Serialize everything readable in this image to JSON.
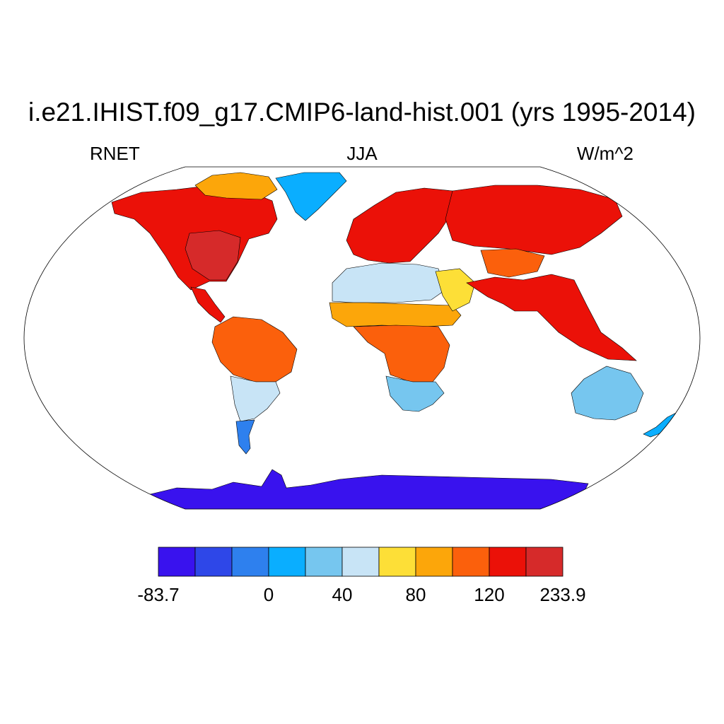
{
  "title": "i.e21.IHIST.f09_g17.CMIP6-land-hist.001 (yrs 1995-2014)",
  "left_label": "RNET",
  "center_label": "JJA",
  "right_label": "W/m^2",
  "colorbar": {
    "colors": [
      "#3912ee",
      "#2e47e8",
      "#2e80ee",
      "#0aaeff",
      "#76c6ef",
      "#c8e4f6",
      "#fddf37",
      "#fca60a",
      "#fb600c",
      "#eb1108",
      "#d62a2a"
    ],
    "labels": [
      "-83.7",
      "0",
      "40",
      "80",
      "120",
      "233.9"
    ]
  },
  "map_data": {
    "projection": "robinson",
    "field": "RNET",
    "season": "JJA",
    "units": "W/m^2",
    "regions": [
      {
        "name": "North America",
        "color": "#eb1108"
      },
      {
        "name": "Eastern United States",
        "color": "#d62a2a"
      },
      {
        "name": "Arctic Canada",
        "color": "#fca60a"
      },
      {
        "name": "Greenland",
        "color": "#0aaeff"
      },
      {
        "name": "Central America",
        "color": "#eb1108"
      },
      {
        "name": "Amazon",
        "color": "#fb600c"
      },
      {
        "name": "Southern South America",
        "color": "#c8e4f6"
      },
      {
        "name": "Patagonia",
        "color": "#2e80ee"
      },
      {
        "name": "Europe",
        "color": "#eb1108"
      },
      {
        "name": "Sahara",
        "color": "#c8e4f6"
      },
      {
        "name": "Sahel",
        "color": "#fca60a"
      },
      {
        "name": "Central Africa",
        "color": "#fb600c"
      },
      {
        "name": "Southern Africa",
        "color": "#76c6ef"
      },
      {
        "name": "Arabia",
        "color": "#fddf37"
      },
      {
        "name": "Siberia",
        "color": "#eb1108"
      },
      {
        "name": "Tibet",
        "color": "#fb600c"
      },
      {
        "name": "India and Southeast Asia",
        "color": "#eb1108"
      },
      {
        "name": "Australia",
        "color": "#76c6ef"
      },
      {
        "name": "New Zealand",
        "color": "#0aaeff"
      },
      {
        "name": "Antarctica",
        "color": "#3912ee"
      }
    ]
  }
}
